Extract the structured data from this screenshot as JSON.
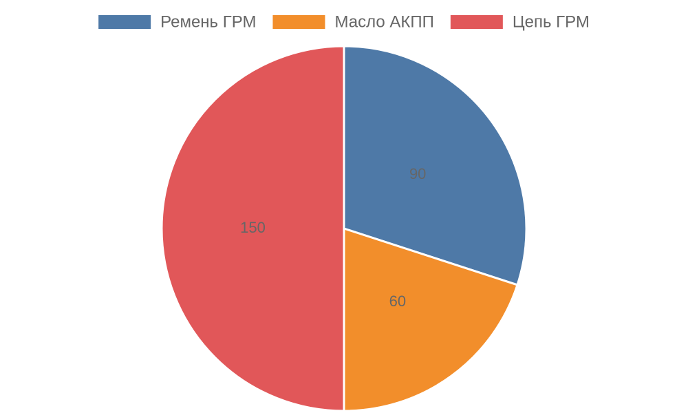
{
  "chart_data": {
    "type": "pie",
    "categories": [
      "Ремень ГРМ",
      "Масло АКПП",
      "Цепь ГРМ"
    ],
    "values": [
      90,
      60,
      150
    ],
    "colors": [
      "#4e79a7",
      "#f28e2b",
      "#e15759"
    ],
    "legend": "top"
  }
}
